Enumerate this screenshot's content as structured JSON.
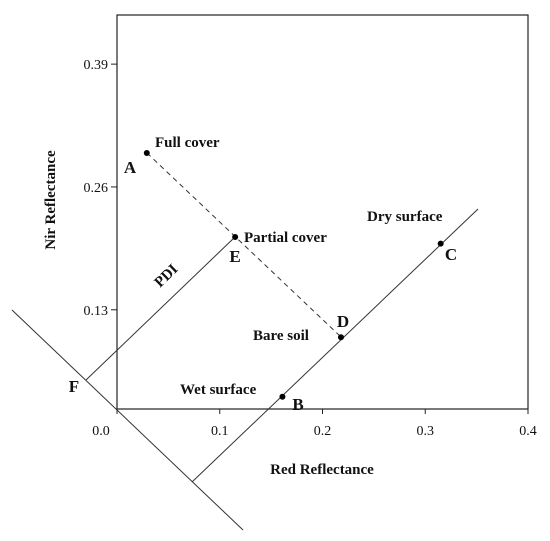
{
  "chart_data": {
    "type": "scatter",
    "x_label": "Red Reflectance",
    "y_label": "Nir Reflectance",
    "xlim": [
      0,
      0.4
    ],
    "ylim": [
      0.025,
      0.442
    ],
    "xticks": [
      {
        "value": 0,
        "label": "0.0"
      },
      0.1,
      0.2,
      0.3,
      0.4
    ],
    "yticks": [
      0.13,
      0.26,
      0.39
    ],
    "x": [
      0.029,
      0.161,
      0.315,
      0.218,
      0.115
    ],
    "values": [
      0.296,
      0.038,
      0.2,
      0.101,
      0.207
    ],
    "point_labels": [
      "A",
      "B",
      "C",
      "D",
      "E"
    ],
    "annotations": [
      "Full cover",
      "Wet surface",
      "Dry surface",
      "Bare soil",
      "Partial cover",
      "PDI",
      "F"
    ],
    "color": "#000000"
  }
}
